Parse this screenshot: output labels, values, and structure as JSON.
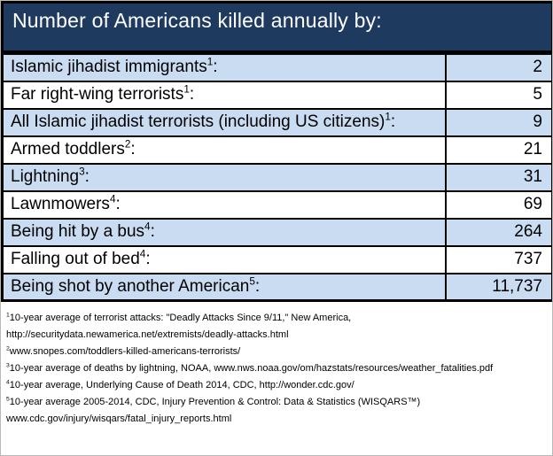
{
  "header": {
    "title": "Number of Americans killed annually by:"
  },
  "colors": {
    "header_bg": "#1e3a5e",
    "row_alt_bg": "#c9dcf1",
    "row_plain_bg": "#ffffff",
    "border": "#000000",
    "title_text": "#ffffff",
    "body_text": "#000000"
  },
  "table": {
    "colon": ":",
    "rows": [
      {
        "label": "Islamic jihadist immigrants",
        "sup": "1",
        "value": "2"
      },
      {
        "label": "Far right-wing terrorists",
        "sup": "1",
        "value": "5"
      },
      {
        "label": "All Islamic jihadist terrorists (including US citizens)",
        "sup": "1",
        "value": "9"
      },
      {
        "label": "Armed toddlers",
        "sup": "2",
        "value": "21"
      },
      {
        "label": "Lightning",
        "sup": "3",
        "value": "31"
      },
      {
        "label": "Lawnmowers",
        "sup": "4",
        "value": "69"
      },
      {
        "label": "Being hit by a bus",
        "sup": "4",
        "value": "264"
      },
      {
        "label": "Falling out of bed",
        "sup": "4",
        "value": "737"
      },
      {
        "label": "Being shot by another American",
        "sup": "5",
        "value": "11,737"
      }
    ]
  },
  "footnotes": [
    {
      "sup": "1",
      "lines": [
        "10-year average of terrorist attacks: \"Deadly Attacks Since 9/11,\" New America,",
        "http://securitydata.newamerica.net/extremists/deadly-attacks.html"
      ]
    },
    {
      "sup": "2",
      "lines": [
        "www.snopes.com/toddlers-killed-americans-terrorists/"
      ]
    },
    {
      "sup": "3",
      "lines": [
        "10-year average of deaths by lightning, NOAA, www.nws.noaa.gov/om/hazstats/resources/weather_fatalities.pdf"
      ]
    },
    {
      "sup": "4",
      "lines": [
        "10-year average, Underlying Cause of Death 2014, CDC, http://wonder.cdc.gov/"
      ]
    },
    {
      "sup": "5",
      "lines": [
        "10-year average 2005-2014, CDC, Injury Prevention & Control: Data & Statistics (WISQARS™)",
        "www.cdc.gov/injury/wisqars/fatal_injury_reports.html"
      ]
    }
  ],
  "chart_data": {
    "type": "table",
    "title": "Number of Americans killed annually by:",
    "categories": [
      "Islamic jihadist immigrants",
      "Far right-wing terrorists",
      "All Islamic jihadist terrorists (including US citizens)",
      "Armed toddlers",
      "Lightning",
      "Lawnmowers",
      "Being hit by a bus",
      "Falling out of bed",
      "Being shot by another American"
    ],
    "values": [
      2,
      5,
      9,
      21,
      31,
      69,
      264,
      737,
      11737
    ]
  }
}
